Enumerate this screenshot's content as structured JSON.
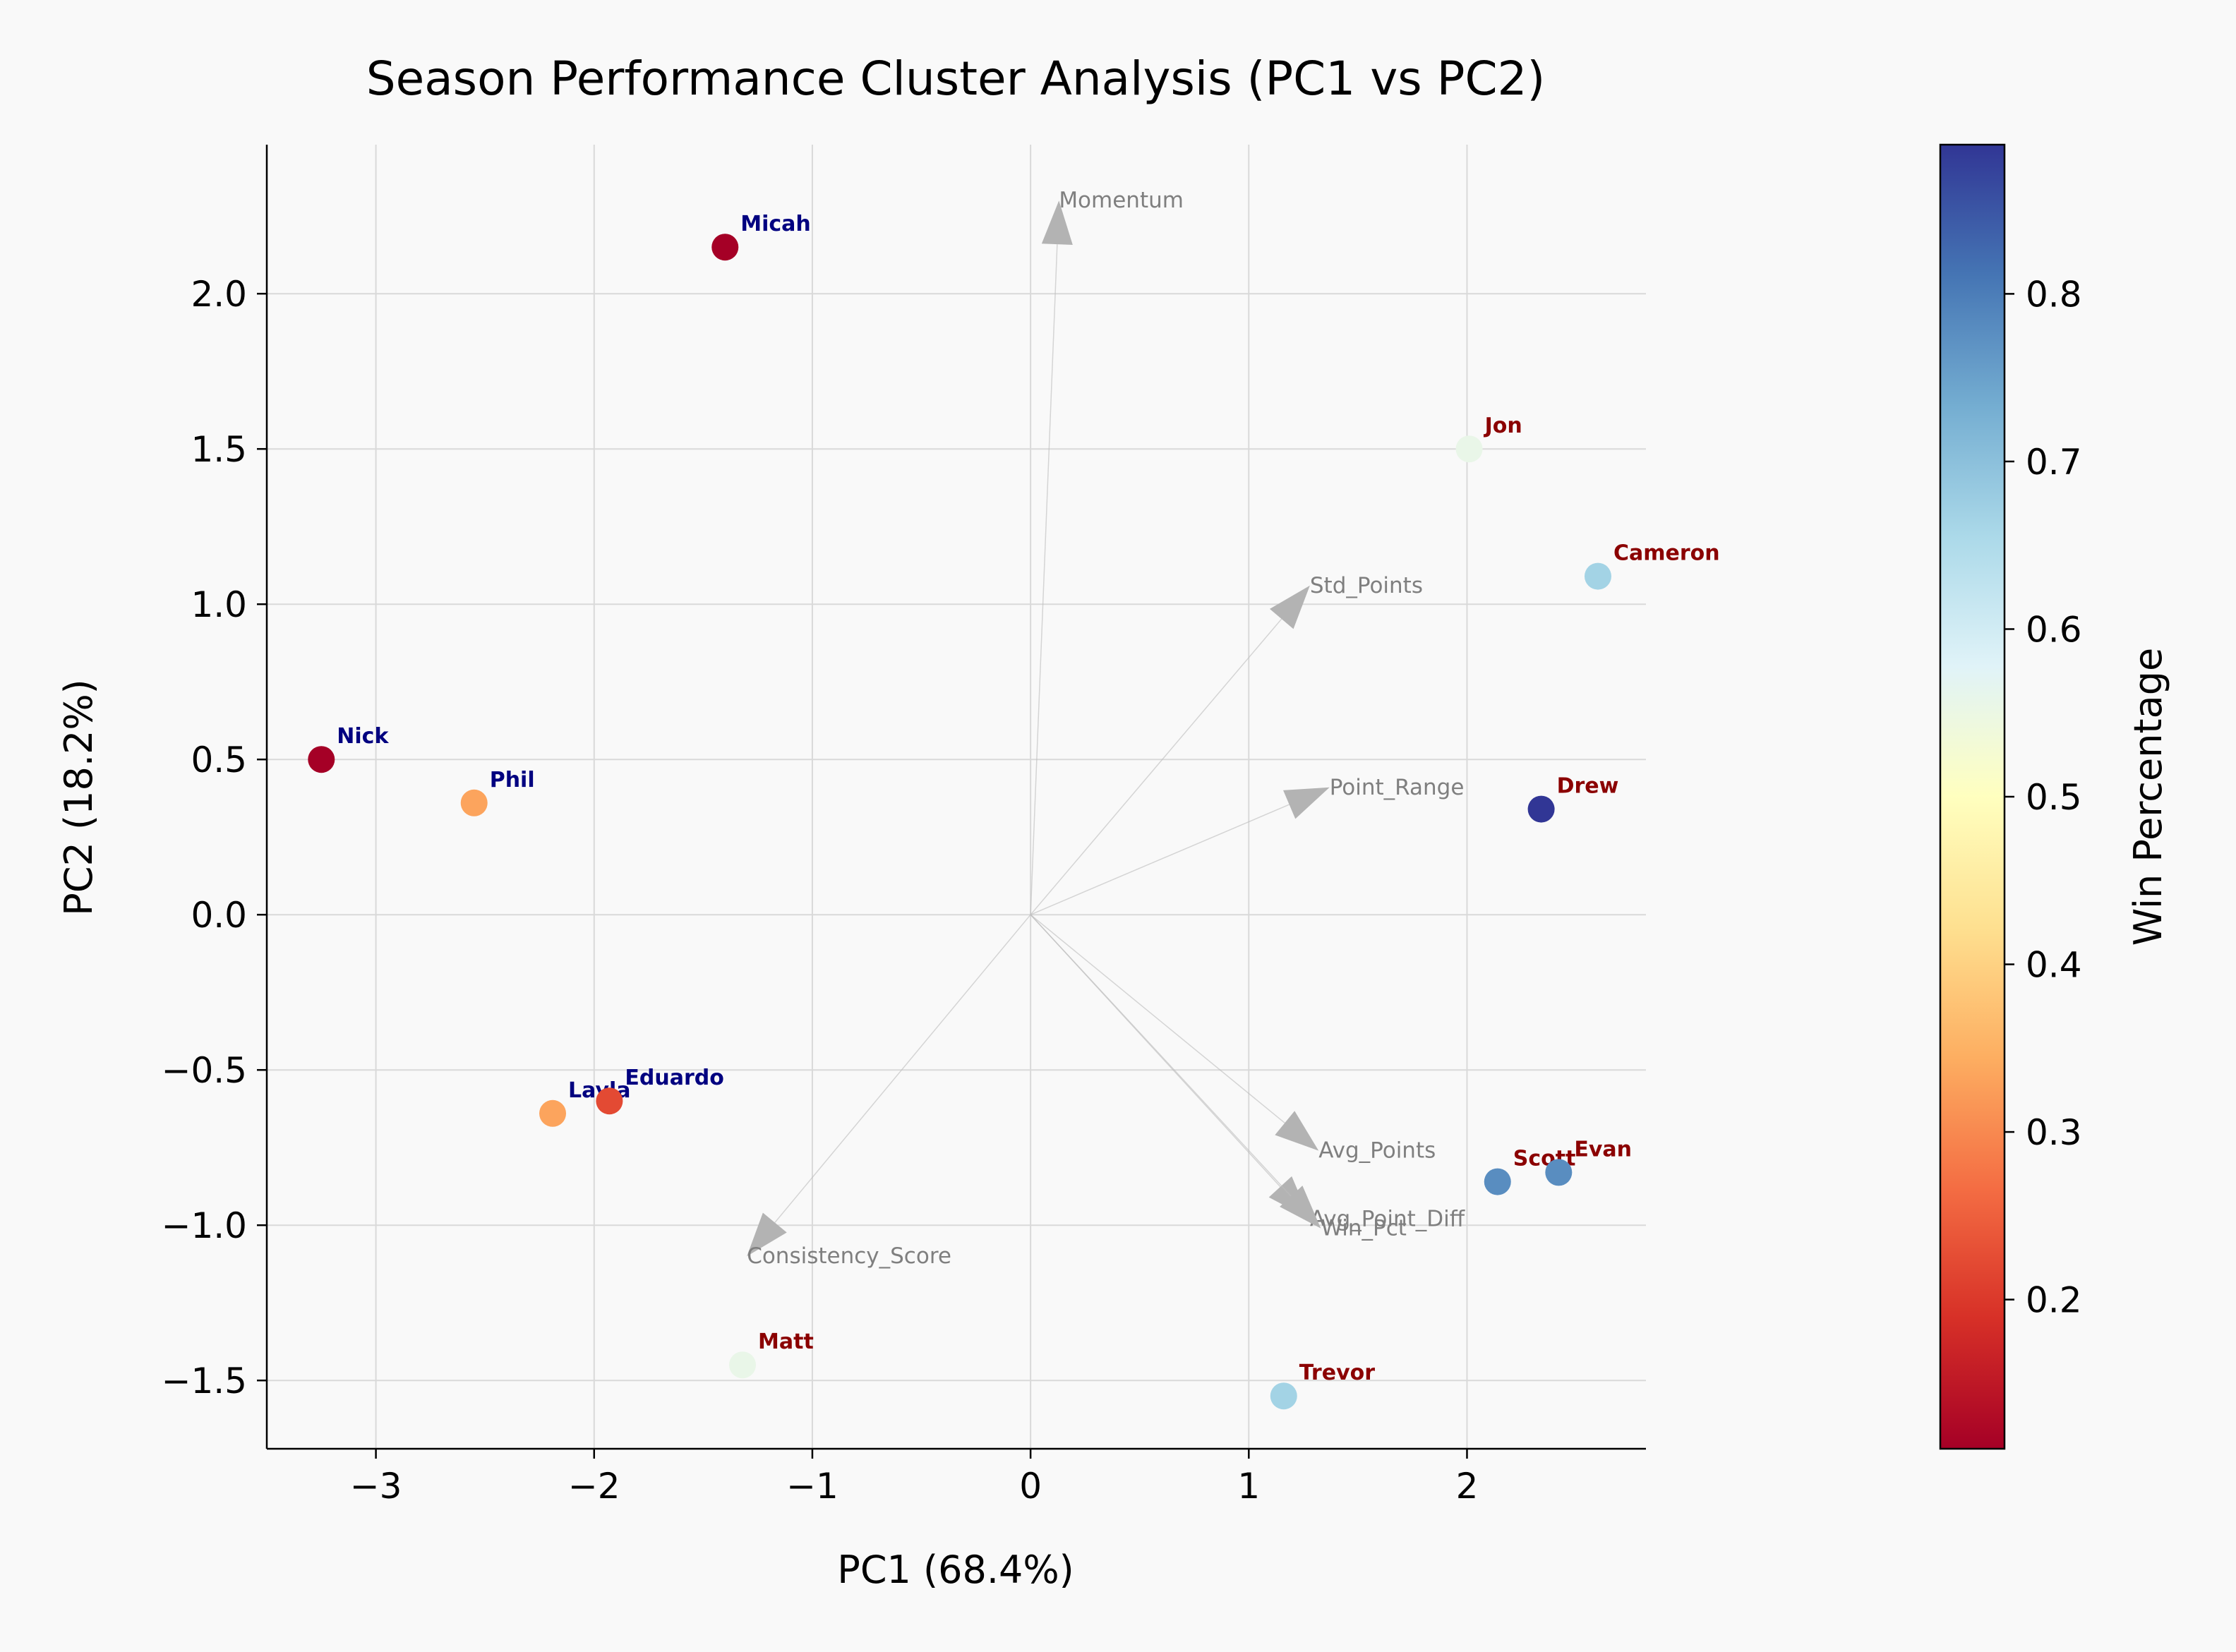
{
  "chart_data": {
    "type": "scatter",
    "title": "Season Performance Cluster Analysis (PC1 vs PC2)",
    "xlabel": "PC1 (68.4%)",
    "ylabel": "PC2 (18.2%)",
    "xlim": [
      -3.5,
      2.82
    ],
    "ylim": [
      -1.72,
      2.48
    ],
    "xticks": [
      -3,
      -2,
      -1,
      0,
      1,
      2
    ],
    "yticks": [
      -1.5,
      -1.0,
      -0.5,
      0.0,
      0.5,
      1.0,
      1.5,
      2.0
    ],
    "xtick_labels": [
      "−3",
      "−2",
      "−1",
      "0",
      "1",
      "2"
    ],
    "ytick_labels": [
      "−1.5",
      "−1.0",
      "−0.5",
      "0.0",
      "0.5",
      "1.0",
      "1.5",
      "2.0"
    ],
    "grid": true,
    "colormap": "RdYlBu",
    "colorbar": {
      "label": "Win Percentage",
      "range": [
        0.111,
        0.889
      ],
      "ticks": [
        0.2,
        0.3,
        0.4,
        0.5,
        0.6,
        0.7,
        0.8
      ],
      "tick_labels": [
        "0.2",
        "0.3",
        "0.4",
        "0.5",
        "0.6",
        "0.7",
        "0.8"
      ]
    },
    "label_colors": {
      "navy": "#000080",
      "darkred": "#8b0000"
    },
    "points": [
      {
        "name": "Micah",
        "x": -1.4,
        "y": 2.15,
        "win_pct": 0.111,
        "label_color": "navy"
      },
      {
        "name": "Jon",
        "x": 2.01,
        "y": 1.5,
        "win_pct": 0.556,
        "label_color": "darkred"
      },
      {
        "name": "Cameron",
        "x": 2.6,
        "y": 1.09,
        "win_pct": 0.667,
        "label_color": "darkred"
      },
      {
        "name": "Nick",
        "x": -3.25,
        "y": 0.5,
        "win_pct": 0.111,
        "label_color": "navy"
      },
      {
        "name": "Phil",
        "x": -2.55,
        "y": 0.36,
        "win_pct": 0.333,
        "label_color": "navy"
      },
      {
        "name": "Drew",
        "x": 2.34,
        "y": 0.34,
        "win_pct": 0.889,
        "label_color": "darkred"
      },
      {
        "name": "Layla",
        "x": -2.19,
        "y": -0.64,
        "win_pct": 0.333,
        "label_color": "navy"
      },
      {
        "name": "Eduardo",
        "x": -1.93,
        "y": -0.6,
        "win_pct": 0.222,
        "label_color": "navy"
      },
      {
        "name": "Scott",
        "x": 2.14,
        "y": -0.86,
        "win_pct": 0.778,
        "label_color": "darkred"
      },
      {
        "name": "Evan",
        "x": 2.42,
        "y": -0.83,
        "win_pct": 0.778,
        "label_color": "darkred"
      },
      {
        "name": "Matt",
        "x": -1.32,
        "y": -1.45,
        "win_pct": 0.556,
        "label_color": "darkred"
      },
      {
        "name": "Trevor",
        "x": 1.16,
        "y": -1.55,
        "win_pct": 0.667,
        "label_color": "darkred"
      }
    ],
    "loadings": [
      {
        "name": "Momentum",
        "x": 0.13,
        "y": 2.3
      },
      {
        "name": "Std_Points",
        "x": 1.28,
        "y": 1.06
      },
      {
        "name": "Point_Range",
        "x": 1.37,
        "y": 0.41
      },
      {
        "name": "Avg_Points",
        "x": 1.32,
        "y": -0.76
      },
      {
        "name": "Avg_Point_Diff",
        "x": 1.28,
        "y": -0.98
      },
      {
        "name": "Win_Pct",
        "x": 1.33,
        "y": -1.01
      },
      {
        "name": "Consistency_Score",
        "x": -1.3,
        "y": -1.1
      }
    ]
  }
}
